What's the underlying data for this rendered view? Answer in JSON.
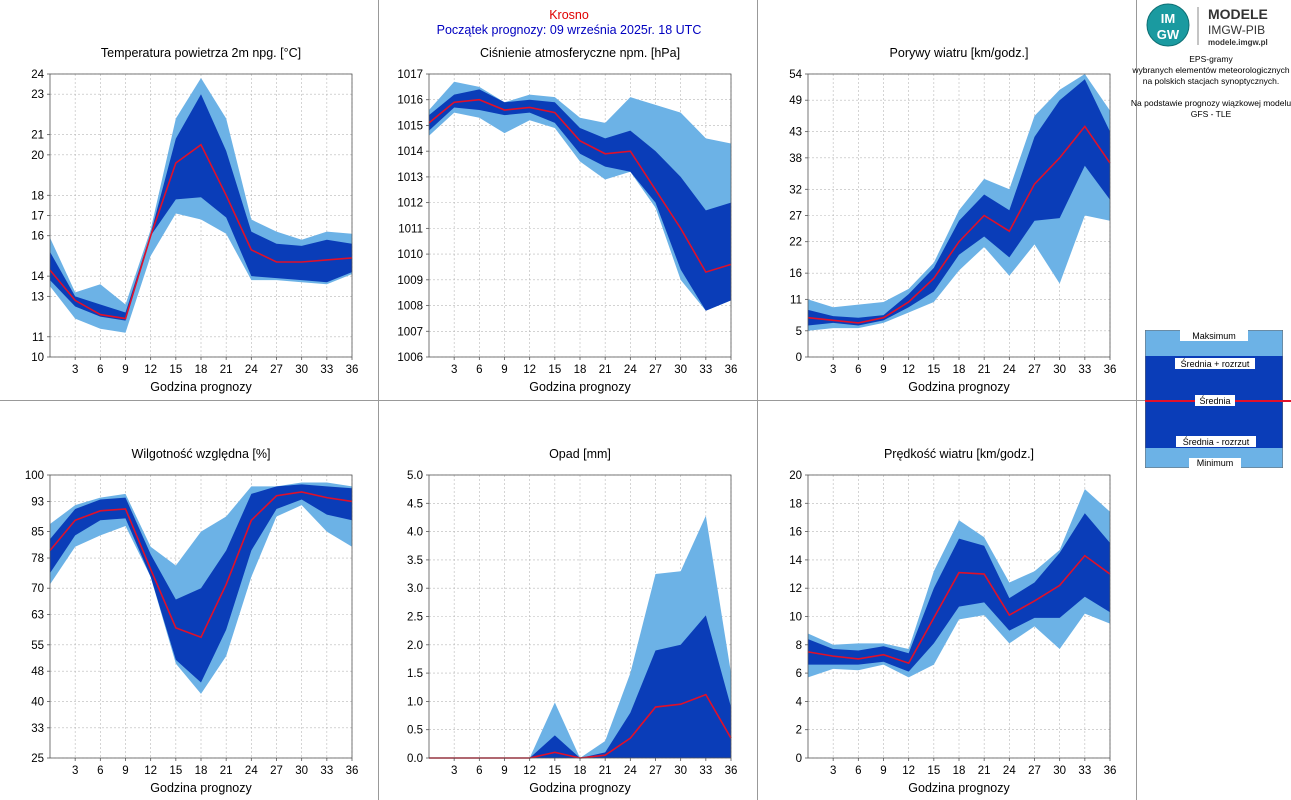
{
  "header": {
    "station": "Krosno",
    "forecast_start": "Początek prognozy: 09 września 2025r. 18 UTC"
  },
  "logo": {
    "brand_top": "MODELE",
    "brand_bottom": "IMGW-PIB",
    "url": "modele.imgw.pl",
    "badge_text": "IMGW"
  },
  "description": {
    "line1": "EPS-gramy",
    "line2": "wybranych elementów meteorologicznych",
    "line3": "na polskich stacjach  synoptycznych.",
    "line4": "Na podstawie prognozy wiązkowej modelu",
    "line5": "GFS - TLE"
  },
  "legend": {
    "max": "Maksimum",
    "mean_plus": "Średnia + rozrzut",
    "mean": "Średnia",
    "mean_minus": "Średnia - rozrzut",
    "min": "Minimum"
  },
  "colors": {
    "outer_band": "#6cb2e6",
    "inner_band": "#0a3db8",
    "mean_line": "#e0102a",
    "grid": "#b8b8b8"
  },
  "chart_data": [
    {
      "id": "temp",
      "type": "area",
      "title": "Temperatura powietrza 2m npg. [°C]",
      "xlabel": "Godzina prognozy",
      "x": [
        0,
        3,
        6,
        9,
        12,
        15,
        18,
        21,
        24,
        27,
        30,
        33,
        36
      ],
      "xticks": [
        3,
        6,
        9,
        12,
        15,
        18,
        21,
        24,
        27,
        30,
        33,
        36
      ],
      "ylim": [
        10,
        24
      ],
      "yticks": [
        10,
        11,
        13,
        14,
        16,
        17,
        18,
        20,
        21,
        23,
        24
      ],
      "max": [
        15.9,
        13.2,
        13.6,
        12.6,
        16.3,
        21.8,
        23.8,
        21.8,
        16.8,
        16.2,
        15.8,
        16.2,
        16.1
      ],
      "up": [
        15.2,
        13.0,
        12.6,
        12.2,
        16.1,
        20.8,
        23.0,
        20.2,
        16.2,
        15.6,
        15.5,
        15.8,
        15.6
      ],
      "mean": [
        14.3,
        12.8,
        12.1,
        11.9,
        16.0,
        19.6,
        20.5,
        18.0,
        15.3,
        14.7,
        14.7,
        14.8,
        14.9
      ],
      "down": [
        13.8,
        12.5,
        12.0,
        11.8,
        16.0,
        17.8,
        17.9,
        16.9,
        14.0,
        13.9,
        13.8,
        13.7,
        14.2
      ],
      "min": [
        13.5,
        11.9,
        11.4,
        11.2,
        15.0,
        17.1,
        16.8,
        16.1,
        13.8,
        13.8,
        13.7,
        13.6,
        14.1
      ]
    },
    {
      "id": "pressure",
      "type": "area",
      "title": "Ciśnienie atmosferyczne npm. [hPa]",
      "xlabel": "Godzina prognozy",
      "x": [
        0,
        3,
        6,
        9,
        12,
        15,
        18,
        21,
        24,
        27,
        30,
        33,
        36
      ],
      "xticks": [
        3,
        6,
        9,
        12,
        15,
        18,
        21,
        24,
        27,
        30,
        33,
        36
      ],
      "ylim": [
        1006,
        1017
      ],
      "yticks": [
        1006,
        1007,
        1008,
        1009,
        1010,
        1011,
        1012,
        1013,
        1014,
        1015,
        1016,
        1017
      ],
      "max": [
        1015.6,
        1016.7,
        1016.5,
        1015.9,
        1016.2,
        1016.1,
        1015.3,
        1015.1,
        1016.1,
        1015.8,
        1015.5,
        1014.5,
        1014.3
      ],
      "up": [
        1015.4,
        1016.2,
        1016.4,
        1015.9,
        1016.0,
        1015.9,
        1014.9,
        1014.5,
        1014.8,
        1014.0,
        1013.0,
        1011.7,
        1012.0
      ],
      "mean": [
        1015.1,
        1015.9,
        1016.0,
        1015.6,
        1015.7,
        1015.5,
        1014.4,
        1013.9,
        1014.0,
        1012.5,
        1011.0,
        1009.3,
        1009.6
      ],
      "down": [
        1014.8,
        1015.7,
        1015.6,
        1015.4,
        1015.5,
        1015.1,
        1013.9,
        1013.4,
        1013.2,
        1012.0,
        1009.4,
        1007.8,
        1008.2
      ],
      "min": [
        1014.6,
        1015.5,
        1015.3,
        1014.7,
        1015.2,
        1014.9,
        1013.6,
        1012.9,
        1013.2,
        1011.8,
        1009.0,
        1007.8,
        1008.2
      ]
    },
    {
      "id": "gusts",
      "type": "area",
      "title": "Porywy wiatru [km/godz.]",
      "xlabel": "Godzina prognozy",
      "x": [
        0,
        3,
        6,
        9,
        12,
        15,
        18,
        21,
        24,
        27,
        30,
        33,
        36
      ],
      "xticks": [
        3,
        6,
        9,
        12,
        15,
        18,
        21,
        24,
        27,
        30,
        33,
        36
      ],
      "ylim": [
        0,
        54
      ],
      "yticks": [
        0,
        5,
        11,
        16,
        22,
        27,
        32,
        38,
        43,
        49,
        54
      ],
      "max": [
        11,
        9.5,
        10,
        10.5,
        13,
        18,
        28,
        34,
        32,
        46,
        51,
        54,
        47
      ],
      "up": [
        9,
        7.8,
        7.5,
        8,
        12,
        17,
        26,
        31,
        28,
        42,
        49,
        53,
        43
      ],
      "mean": [
        7.5,
        7,
        6.5,
        7.5,
        10.5,
        15,
        22,
        27,
        24,
        33,
        38,
        44,
        37
      ],
      "down": [
        6,
        6.5,
        6,
        7,
        9.5,
        12.5,
        19.5,
        23,
        19,
        26,
        26.5,
        36.5,
        30
      ],
      "min": [
        5,
        5.5,
        5.5,
        6.5,
        8.5,
        10.5,
        16.5,
        21,
        15.5,
        21.5,
        14,
        27,
        26
      ]
    },
    {
      "id": "humidity",
      "type": "area",
      "title": "Wilgotność względna [%]",
      "xlabel": "Godzina prognozy",
      "x": [
        0,
        3,
        6,
        9,
        12,
        15,
        18,
        21,
        24,
        27,
        30,
        33,
        36
      ],
      "xticks": [
        3,
        6,
        9,
        12,
        15,
        18,
        21,
        24,
        27,
        30,
        33,
        36
      ],
      "ylim": [
        25,
        100
      ],
      "yticks": [
        25,
        33,
        40,
        48,
        55,
        63,
        70,
        78,
        85,
        93,
        100
      ],
      "max": [
        87,
        92,
        94,
        95,
        81,
        76,
        85,
        89,
        97,
        97,
        98,
        98,
        97
      ],
      "up": [
        83,
        91,
        93.5,
        94,
        79,
        67,
        70,
        80,
        95,
        97,
        97.5,
        97,
        96.5
      ],
      "mean": [
        80,
        88,
        90.5,
        91,
        75,
        59.5,
        57,
        71,
        88,
        94.5,
        95.5,
        94,
        93
      ],
      "down": [
        74,
        84,
        88,
        88.5,
        73,
        51,
        45,
        59,
        80,
        91,
        93.5,
        89.5,
        88
      ],
      "min": [
        71,
        81,
        84,
        86.5,
        73,
        50,
        42,
        52,
        73,
        89,
        92,
        85,
        81
      ]
    },
    {
      "id": "precip",
      "type": "area",
      "title": "Opad [mm]",
      "xlabel": "Godzina prognozy",
      "x": [
        0,
        3,
        6,
        9,
        12,
        15,
        18,
        21,
        24,
        27,
        30,
        33,
        36
      ],
      "xticks": [
        3,
        6,
        9,
        12,
        15,
        18,
        21,
        24,
        27,
        30,
        33,
        36
      ],
      "ylim": [
        0,
        5
      ],
      "yticks": [
        0.0,
        0.5,
        1.0,
        1.5,
        2.0,
        2.5,
        3.0,
        3.5,
        4.0,
        4.5,
        5.0
      ],
      "ytick_decimals": 1,
      "max": [
        0,
        0,
        0,
        0,
        0,
        0.98,
        0,
        0.3,
        1.5,
        3.25,
        3.3,
        4.28,
        1.5
      ],
      "up": [
        0,
        0,
        0,
        0,
        0,
        0.4,
        0,
        0.1,
        0.8,
        1.9,
        2.0,
        2.52,
        0.9
      ],
      "mean": [
        0,
        0,
        0,
        0,
        0,
        0.1,
        0,
        0.05,
        0.35,
        0.9,
        0.95,
        1.12,
        0.35
      ],
      "down": [
        0,
        0,
        0,
        0,
        0,
        0,
        0,
        0,
        0,
        0,
        0,
        0,
        0
      ],
      "min": [
        0,
        0,
        0,
        0,
        0,
        0,
        0,
        0,
        0,
        0,
        0,
        0,
        0
      ]
    },
    {
      "id": "wind",
      "type": "area",
      "title": "Prędkość wiatru [km/godz.]",
      "xlabel": "Godzina prognozy",
      "x": [
        0,
        3,
        6,
        9,
        12,
        15,
        18,
        21,
        24,
        27,
        30,
        33,
        36
      ],
      "xticks": [
        3,
        6,
        9,
        12,
        15,
        18,
        21,
        24,
        27,
        30,
        33,
        36
      ],
      "ylim": [
        0,
        20
      ],
      "yticks": [
        0,
        2,
        4,
        6,
        8,
        10,
        12,
        14,
        16,
        18,
        20
      ],
      "max": [
        8.8,
        8,
        8.1,
        8.1,
        7.7,
        13.2,
        16.8,
        15.6,
        12.4,
        13.2,
        14.7,
        19,
        17.4
      ],
      "up": [
        8.4,
        7.7,
        7.6,
        7.9,
        7.4,
        12,
        15.5,
        15,
        11.3,
        12.4,
        14.5,
        17.3,
        15.2
      ],
      "mean": [
        7.5,
        7.2,
        7.0,
        7.3,
        6.7,
        9.9,
        13.1,
        13,
        10.1,
        11.1,
        12.2,
        14.3,
        13
      ],
      "down": [
        6.6,
        6.6,
        6.6,
        6.8,
        6.1,
        8.1,
        10.7,
        11,
        9,
        9.9,
        9.9,
        11.4,
        10.3
      ],
      "min": [
        5.7,
        6.3,
        6.2,
        6.6,
        5.7,
        6.6,
        9.8,
        10.1,
        8.1,
        9.3,
        7.7,
        10.2,
        9.5
      ]
    }
  ]
}
